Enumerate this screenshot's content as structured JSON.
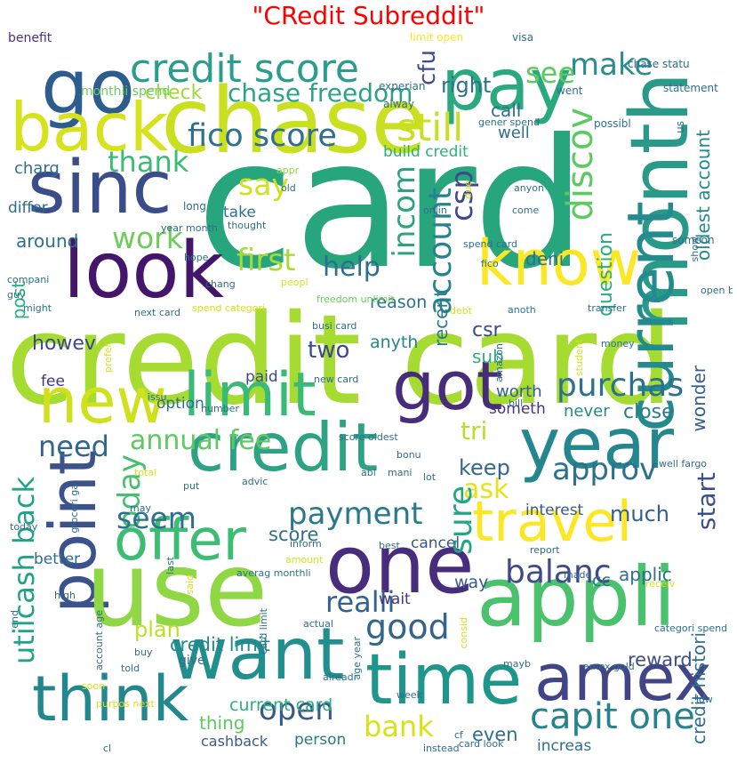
{
  "title": "\"CRedit Subreddit\"",
  "words": [
    {
      "t": "card",
      "c": "#27a67e"
    },
    {
      "t": "credit card",
      "c": "#a6db32"
    },
    {
      "t": "chase",
      "c": "#c8e020"
    },
    {
      "t": "pay",
      "c": "#2aa97e"
    },
    {
      "t": "go",
      "c": "#2c5d8d"
    },
    {
      "t": "month",
      "c": "#2a9a88"
    },
    {
      "t": "credit score",
      "c": "#2a9d8c"
    },
    {
      "t": "make",
      "c": "#2a8c8c"
    },
    {
      "t": "sinc",
      "c": "#3b4c8b"
    },
    {
      "t": "back",
      "c": "#d6e21b"
    },
    {
      "t": "look",
      "c": "#43156b"
    },
    {
      "t": "current",
      "c": "#238a8d"
    },
    {
      "t": "know",
      "c": "#fbe723"
    },
    {
      "t": "fico score",
      "c": "#2e6e8e"
    },
    {
      "t": "still",
      "c": "#c8e020"
    },
    {
      "t": "chase freedom",
      "c": "#2ea384"
    },
    {
      "t": "check",
      "c": "#a0da39"
    },
    {
      "t": "thank",
      "c": "#3cbb75"
    },
    {
      "t": "say",
      "c": "#d0e11c"
    },
    {
      "t": "work",
      "c": "#6ccd5a"
    },
    {
      "t": "first",
      "c": "#a8db34"
    },
    {
      "t": "discov",
      "c": "#5ec962"
    },
    {
      "t": "incom",
      "c": "#2ea384"
    },
    {
      "t": "csp",
      "c": "#3e4989"
    },
    {
      "t": "new",
      "c": "#d0e11c"
    },
    {
      "t": "limit",
      "c": "#3aba76"
    },
    {
      "t": "got",
      "c": "#472c7a"
    },
    {
      "t": "year",
      "c": "#24868e"
    },
    {
      "t": "credit",
      "c": "#2ea384"
    },
    {
      "t": "point",
      "c": "#3b528b"
    },
    {
      "t": "use",
      "c": "#8fd744"
    },
    {
      "t": "one",
      "c": "#472d7b"
    },
    {
      "t": "offer",
      "c": "#3dbc74"
    },
    {
      "t": "travel",
      "c": "#fde725"
    },
    {
      "t": "appli",
      "c": "#4ac16d"
    },
    {
      "t": "want",
      "c": "#218f8d"
    },
    {
      "t": "think",
      "c": "#24878e"
    },
    {
      "t": "time",
      "c": "#1f968b"
    },
    {
      "t": "amex",
      "c": "#414487"
    },
    {
      "t": "purchas",
      "c": "#2d708e"
    },
    {
      "t": "account",
      "c": "#26828e"
    },
    {
      "t": "help",
      "c": "#2e6f8e"
    },
    {
      "t": "need",
      "c": "#31668e"
    },
    {
      "t": "annual fee",
      "c": "#5ec962"
    },
    {
      "t": "approv",
      "c": "#2c728e"
    },
    {
      "t": "payment",
      "c": "#29798e"
    },
    {
      "t": "balanc",
      "c": "#3e4a89"
    },
    {
      "t": "good",
      "c": "#32648e"
    },
    {
      "t": "realli",
      "c": "#33628d"
    },
    {
      "t": "capit one",
      "c": "#25838e"
    },
    {
      "t": "open",
      "c": "#38598c"
    },
    {
      "t": "bank",
      "c": "#d8e219"
    },
    {
      "t": "start",
      "c": "#3c4f8a"
    },
    {
      "t": "ask",
      "c": "#e5e419"
    },
    {
      "t": "sure",
      "c": "#22a785"
    },
    {
      "t": "oday",
      "c": "#46c06f"
    },
    {
      "t": "seem",
      "c": "#2e6e8e"
    },
    {
      "t": "utilcash back",
      "c": "#20a386"
    },
    {
      "t": "right",
      "c": "#2d708e"
    },
    {
      "t": "see",
      "c": "#5ec962"
    },
    {
      "t": "cfu",
      "c": "#3e4a89"
    },
    {
      "t": "deni",
      "c": "#2d708e"
    },
    {
      "t": "question",
      "c": "#2ab07f"
    },
    {
      "t": "tri",
      "c": "#b8de29"
    },
    {
      "t": "keep",
      "c": "#31688e"
    },
    {
      "t": "much",
      "c": "#355f8d"
    },
    {
      "t": "close",
      "c": "#297a8e"
    },
    {
      "t": "never",
      "c": "#23898e"
    },
    {
      "t": "recent",
      "c": "#29798e"
    },
    {
      "t": "csr",
      "c": "#3e4989"
    },
    {
      "t": "sub",
      "c": "#2ab07f"
    },
    {
      "t": "two",
      "c": "#3e4989"
    },
    {
      "t": "anyth",
      "c": "#23898e"
    },
    {
      "t": "call",
      "c": "#2d708e"
    },
    {
      "t": "well",
      "c": "#2d708e"
    },
    {
      "t": "build credit",
      "c": "#2ab07f"
    },
    {
      "t": "worth",
      "c": "#35608d"
    },
    {
      "t": "someth",
      "c": "#46337e"
    },
    {
      "t": "wonder",
      "c": "#355f8d"
    },
    {
      "t": "plan",
      "c": "#bddf26"
    },
    {
      "t": "credit limit",
      "c": "#23898e"
    },
    {
      "t": "reward",
      "c": "#3e4c8a"
    },
    {
      "t": "even",
      "c": "#2e6f8e"
    },
    {
      "t": "cc",
      "c": "#2d718e"
    },
    {
      "t": "applic",
      "c": "#2d708e"
    },
    {
      "t": "way",
      "c": "#38588c"
    },
    {
      "t": "cancel",
      "c": "#38598c"
    },
    {
      "t": "interest",
      "c": "#38598c"
    },
    {
      "t": "wait",
      "c": "#46337e"
    },
    {
      "t": "score",
      "c": "#2e6e8e"
    },
    {
      "t": "thing",
      "c": "#5ec962"
    },
    {
      "t": "current card",
      "c": "#2ab07f"
    },
    {
      "t": "cashback",
      "c": "#38598c"
    },
    {
      "t": "person",
      "c": "#29798e"
    },
    {
      "t": "increas",
      "c": "#2e6e8e"
    },
    {
      "t": "oldest account",
      "c": "#23898e"
    },
    {
      "t": "credit histori",
      "c": "#2d718e"
    },
    {
      "t": "howev",
      "c": "#3e4989"
    },
    {
      "t": "post",
      "c": "#2ab07f"
    },
    {
      "t": "around",
      "c": "#2d708e"
    },
    {
      "t": "charg",
      "c": "#2e6e8e"
    },
    {
      "t": "differ",
      "c": "#2e6e8e"
    },
    {
      "t": "fee",
      "c": "#46337e"
    },
    {
      "t": "better",
      "c": "#2e6e8e"
    },
    {
      "t": "option",
      "c": "#2e6e8e"
    },
    {
      "t": "paid",
      "c": "#3e4989"
    },
    {
      "t": "reason",
      "c": "#2d708e"
    },
    {
      "t": "take",
      "c": "#2e6e8e"
    },
    {
      "t": "benefit",
      "c": "#46337e"
    },
    {
      "t": "monthli spend",
      "c": "#6ccd5a"
    },
    {
      "t": "limit open",
      "c": "#fde725"
    },
    {
      "t": "visa",
      "c": "#2e6e8e"
    },
    {
      "t": "chase statu",
      "c": "#2e6e8e"
    },
    {
      "t": "experian",
      "c": "#2e6e8e"
    },
    {
      "t": "went",
      "c": "#2e6e8e"
    },
    {
      "t": "statement",
      "c": "#2e6e8e"
    },
    {
      "t": "alway",
      "c": "#2e6e8e"
    },
    {
      "t": "possibl",
      "c": "#2e6e8e"
    },
    {
      "t": "gener spend",
      "c": "#2e6e8e"
    },
    {
      "t": "us",
      "c": "#2e6e8e"
    },
    {
      "t": "appr",
      "c": "#8fd744"
    },
    {
      "t": "old",
      "c": "#2e6e8e"
    },
    {
      "t": "anyon",
      "c": "#2e6e8e"
    },
    {
      "t": "long",
      "c": "#2e6e8e"
    },
    {
      "t": "come",
      "c": "#2e6e8e"
    },
    {
      "t": "onlin",
      "c": "#2e6e8e"
    },
    {
      "t": "due",
      "c": "#d8e219"
    },
    {
      "t": "thought",
      "c": "#2e6e8e"
    },
    {
      "t": "year month",
      "c": "#2e6e8e"
    },
    {
      "t": "someon",
      "c": "#2e6e8e"
    },
    {
      "t": "show",
      "c": "#2e6e8e"
    },
    {
      "t": "spend card",
      "c": "#2e6e8e"
    },
    {
      "t": "hope",
      "c": "#2e6e8e"
    },
    {
      "t": "fico",
      "c": "#2e6e8e"
    },
    {
      "t": "compani",
      "c": "#2e6e8e"
    },
    {
      "t": "guy",
      "c": "#2e6e8e"
    },
    {
      "t": "chang",
      "c": "#2e6e8e"
    },
    {
      "t": "peopl",
      "c": "#d8e219"
    },
    {
      "t": "open busi",
      "c": "#2e6e8e"
    },
    {
      "t": "might",
      "c": "#2e6e8e"
    },
    {
      "t": "freedom unlimit",
      "c": "#6ccd5a"
    },
    {
      "t": "debt",
      "c": "#d8e219"
    },
    {
      "t": "anoth",
      "c": "#2e6e8e"
    },
    {
      "t": "transfer",
      "c": "#2e6e8e"
    },
    {
      "t": "spend categori",
      "c": "#d8e219"
    },
    {
      "t": "next card",
      "c": "#2e6e8e"
    },
    {
      "t": "busi card",
      "c": "#2e6e8e"
    },
    {
      "t": "money",
      "c": "#2e6e8e"
    },
    {
      "t": "prefer",
      "c": "#d8e219"
    },
    {
      "t": "student",
      "c": "#d8e219"
    },
    {
      "t": "amazon",
      "c": "#2e6e8e"
    },
    {
      "t": "new card",
      "c": "#2e6e8e"
    },
    {
      "t": "issu",
      "c": "#2e6e8e"
    },
    {
      "t": "number",
      "c": "#2e6e8e"
    },
    {
      "t": "bill",
      "c": "#2e6e8e"
    },
    {
      "t": "score oldest",
      "c": "#2e6e8e"
    },
    {
      "t": "bonu",
      "c": "#2e6e8e"
    },
    {
      "t": "abl",
      "c": "#2e6e8e"
    },
    {
      "t": "mani",
      "c": "#2e6e8e"
    },
    {
      "t": "groceri ga",
      "c": "#2e6e8e"
    },
    {
      "t": "total",
      "c": "#d8e219"
    },
    {
      "t": "put",
      "c": "#2e6e8e"
    },
    {
      "t": "advic",
      "c": "#2e6e8e"
    },
    {
      "t": "lot",
      "c": "#2e6e8e"
    },
    {
      "t": "well fargo",
      "c": "#2e6e8e"
    },
    {
      "t": "may",
      "c": "#2e6e8e"
    },
    {
      "t": "today",
      "c": "#2e6e8e"
    },
    {
      "t": "amount",
      "c": "#d8e219"
    },
    {
      "t": "inform",
      "c": "#2e6e8e"
    },
    {
      "t": "best",
      "c": "#2e6e8e"
    },
    {
      "t": "report",
      "c": "#2e6e8e"
    },
    {
      "t": "last",
      "c": "#2e6e8e"
    },
    {
      "t": "said",
      "c": "#d8e219"
    },
    {
      "t": "averag monthli",
      "c": "#2e6e8e"
    },
    {
      "t": "made",
      "c": "#2e6e8e"
    },
    {
      "t": "receiv",
      "c": "#d8e219"
    },
    {
      "t": "high",
      "c": "#2e6e8e"
    },
    {
      "t": "end",
      "c": "#2e6e8e"
    },
    {
      "t": "account age",
      "c": "#2e6e8e"
    },
    {
      "t": "card limit",
      "c": "#2e6e8e"
    },
    {
      "t": "actual",
      "c": "#2e6e8e"
    },
    {
      "t": "consid",
      "c": "#d8e219"
    },
    {
      "t": "categori spend",
      "c": "#2e6e8e"
    },
    {
      "t": "buy",
      "c": "#2e6e8e"
    },
    {
      "t": "told",
      "c": "#2e6e8e"
    },
    {
      "t": "age year",
      "c": "#2e6e8e"
    },
    {
      "t": "alreadi",
      "c": "#2e6e8e"
    },
    {
      "t": "amex gold",
      "c": "#2e6e8e"
    },
    {
      "t": "soon",
      "c": "#d8e219"
    },
    {
      "t": "purpos next",
      "c": "#d8e219"
    },
    {
      "t": "week",
      "c": "#2e6e8e"
    },
    {
      "t": "low",
      "c": "#2e6e8e"
    },
    {
      "t": "cf",
      "c": "#2e6e8e"
    },
    {
      "t": "cl",
      "c": "#2e6e8e"
    },
    {
      "t": "instead",
      "c": "#2e6e8e"
    },
    {
      "t": "card look",
      "c": "#2e6e8e"
    },
    {
      "t": "mayb",
      "c": "#2e6e8e"
    },
    {
      "t": "give",
      "c": "#2e6e8e"
    },
    {
      "t": "citi",
      "c": "#2e6e8e"
    }
  ]
}
